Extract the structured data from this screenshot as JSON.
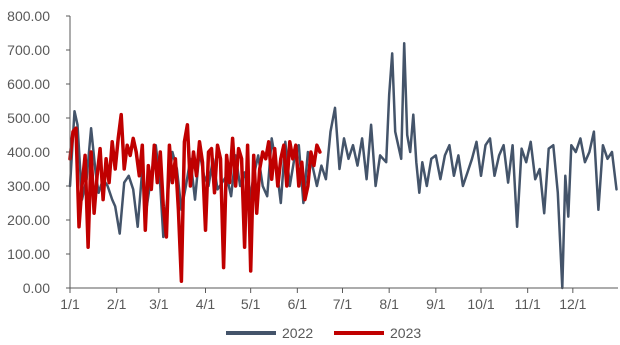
{
  "chart_data": {
    "type": "line",
    "title": "",
    "xlabel": "",
    "ylabel": "",
    "ylim": [
      0,
      800
    ],
    "yticks": [
      "0.00",
      "100.00",
      "200.00",
      "300.00",
      "400.00",
      "500.00",
      "600.00",
      "700.00",
      "800.00"
    ],
    "x_tick_labels": [
      "1/1",
      "2/1",
      "3/1",
      "4/1",
      "5/1",
      "6/1",
      "7/1",
      "8/1",
      "9/1",
      "10/1",
      "11/1",
      "12/1"
    ],
    "x_tick_days": [
      0,
      31,
      59,
      90,
      120,
      151,
      181,
      212,
      243,
      273,
      304,
      334
    ],
    "x_max_day": 364,
    "legend_position": "bottom",
    "series": [
      {
        "name": "2022",
        "color": "#44546A",
        "days": [
          0,
          3,
          5,
          8,
          11,
          14,
          17,
          19,
          22,
          25,
          28,
          30,
          33,
          36,
          39,
          42,
          45,
          48,
          51,
          54,
          57,
          60,
          62,
          65,
          68,
          71,
          74,
          77,
          80,
          83,
          86,
          89,
          92,
          95,
          98,
          101,
          104,
          107,
          110,
          113,
          116,
          119,
          122,
          125,
          128,
          131,
          134,
          137,
          140,
          143,
          146,
          149,
          152,
          155,
          158,
          161,
          164,
          167,
          170,
          173,
          176,
          179,
          182,
          185,
          188,
          191,
          194,
          197,
          200,
          203,
          206,
          208,
          210,
          212,
          214,
          216,
          218,
          220,
          222,
          224,
          226,
          228,
          230,
          232,
          234,
          237,
          240,
          243,
          246,
          249,
          252,
          255,
          258,
          261,
          264,
          267,
          270,
          273,
          276,
          279,
          282,
          285,
          288,
          291,
          294,
          297,
          300,
          303,
          306,
          309,
          312,
          315,
          318,
          321,
          324,
          327,
          329,
          331,
          333,
          336,
          339,
          342,
          345,
          348,
          351,
          354,
          357,
          360,
          363
        ],
        "values": [
          300,
          520,
          480,
          260,
          320,
          470,
          340,
          280,
          320,
          300,
          260,
          240,
          160,
          310,
          330,
          290,
          180,
          350,
          240,
          330,
          420,
          300,
          150,
          280,
          400,
          350,
          230,
          300,
          380,
          260,
          400,
          330,
          300,
          380,
          290,
          310,
          330,
          270,
          390,
          300,
          340,
          250,
          330,
          390,
          300,
          270,
          440,
          360,
          250,
          430,
          300,
          380,
          420,
          250,
          400,
          360,
          300,
          360,
          320,
          460,
          530,
          350,
          440,
          380,
          420,
          360,
          440,
          320,
          480,
          300,
          390,
          380,
          370,
          570,
          690,
          460,
          420,
          380,
          720,
          450,
          400,
          510,
          370,
          280,
          370,
          300,
          380,
          390,
          320,
          390,
          420,
          330,
          390,
          300,
          340,
          380,
          430,
          330,
          420,
          440,
          330,
          390,
          420,
          310,
          420,
          180,
          410,
          370,
          430,
          320,
          350,
          220,
          410,
          420,
          280,
          0,
          330,
          210,
          420,
          400,
          440,
          370,
          400,
          460,
          230,
          420,
          380,
          400,
          290
        ]
      },
      {
        "name": "2023",
        "color": "#C00000",
        "days": [
          0,
          2,
          4,
          6,
          8,
          10,
          12,
          14,
          16,
          18,
          20,
          22,
          24,
          26,
          28,
          30,
          32,
          34,
          36,
          38,
          40,
          42,
          44,
          46,
          48,
          50,
          52,
          54,
          56,
          58,
          60,
          62,
          64,
          66,
          68,
          70,
          72,
          74,
          76,
          78,
          80,
          82,
          84,
          86,
          88,
          90,
          92,
          94,
          96,
          98,
          100,
          102,
          104,
          106,
          108,
          110,
          112,
          114,
          116,
          118,
          120,
          122,
          124,
          126,
          128,
          130,
          132,
          134,
          136,
          138,
          140,
          142,
          144,
          146,
          148,
          150,
          152,
          154,
          156,
          158,
          160,
          162,
          164,
          166
        ],
        "values": [
          380,
          460,
          470,
          180,
          300,
          390,
          120,
          400,
          220,
          330,
          410,
          260,
          380,
          310,
          430,
          350,
          440,
          510,
          350,
          420,
          390,
          440,
          400,
          330,
          420,
          170,
          360,
          290,
          420,
          310,
          400,
          240,
          150,
          420,
          310,
          380,
          230,
          20,
          430,
          480,
          300,
          400,
          330,
          430,
          370,
          170,
          400,
          410,
          280,
          420,
          380,
          60,
          390,
          310,
          440,
          300,
          410,
          380,
          120,
          420,
          50,
          390,
          220,
          350,
          400,
          380,
          430,
          320,
          410,
          300,
          380,
          420,
          300,
          430,
          380,
          420,
          300,
          370,
          260,
          300,
          400,
          360,
          420,
          400
        ]
      }
    ]
  }
}
